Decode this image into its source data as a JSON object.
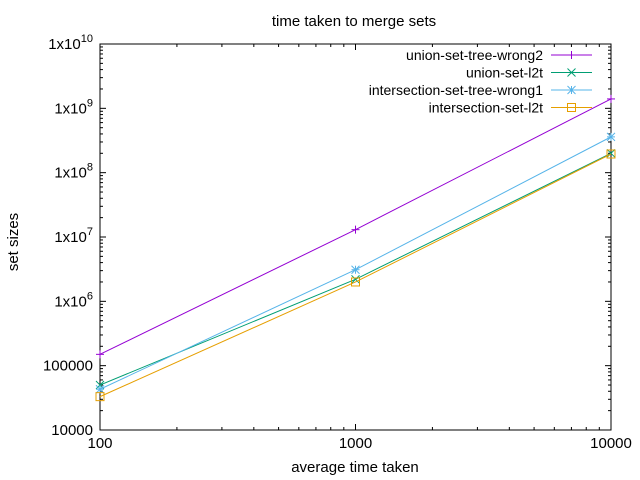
{
  "chart_data": {
    "type": "line",
    "title": "time taken to merge sets",
    "xlabel": "average time taken",
    "ylabel": "set sizes",
    "xscale": "log",
    "yscale": "log",
    "xlim": [
      100,
      10000
    ],
    "ylim": [
      10000,
      10000000000
    ],
    "grid": false,
    "legend_position": "top-right",
    "x_ticks": [
      {
        "value": 100,
        "label": "100"
      },
      {
        "value": 1000,
        "label": "1000"
      },
      {
        "value": 10000,
        "label": "10000"
      }
    ],
    "y_ticks": [
      {
        "value": 10000,
        "base": "10000",
        "exp": ""
      },
      {
        "value": 100000,
        "base": "100000",
        "exp": ""
      },
      {
        "value": 1000000,
        "base": "1x10",
        "exp": "6"
      },
      {
        "value": 10000000,
        "base": "1x10",
        "exp": "7"
      },
      {
        "value": 100000000,
        "base": "1x10",
        "exp": "8"
      },
      {
        "value": 1000000000,
        "base": "1x10",
        "exp": "9"
      },
      {
        "value": 10000000000,
        "base": "1x10",
        "exp": "10"
      }
    ],
    "x": [
      100,
      1000,
      10000
    ],
    "series": [
      {
        "name": "union-set-tree-wrong2",
        "color": "#9400d3",
        "marker": "plus",
        "values": [
          150000,
          13000000,
          1400000000
        ]
      },
      {
        "name": "union-set-l2t",
        "color": "#009e73",
        "marker": "cross",
        "values": [
          50000,
          2200000,
          200000000
        ]
      },
      {
        "name": "intersection-set-tree-wrong1",
        "color": "#56b4e9",
        "marker": "star",
        "values": [
          43000,
          3100000,
          360000000
        ]
      },
      {
        "name": "intersection-set-l2t",
        "color": "#e69f00",
        "marker": "square",
        "values": [
          33000,
          2000000,
          195000000
        ]
      }
    ]
  }
}
